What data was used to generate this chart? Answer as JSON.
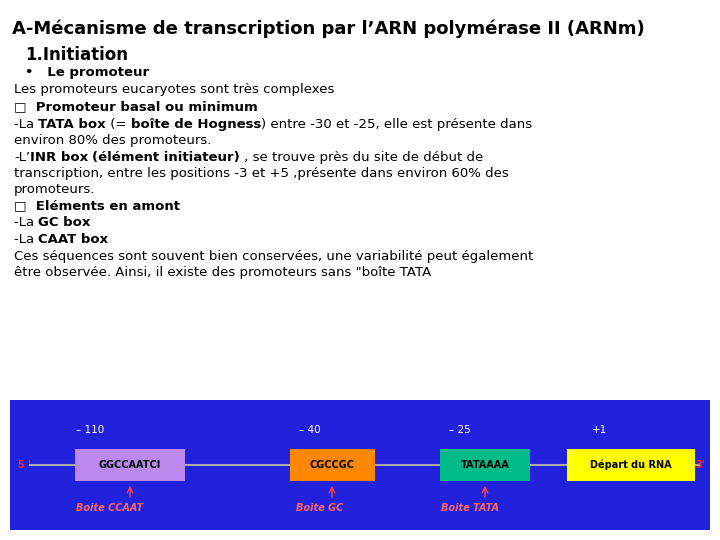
{
  "title": "A-Mécanisme de transcription par l’ARN polymérase II (ARNm)",
  "bg": "#ffffff",
  "diagram": {
    "bg_color": "#2222dd",
    "boxes": [
      {
        "label": "GGCCAATCI",
        "facecolor": "#bb88ee",
        "textcolor": "#000000"
      },
      {
        "label": "CGCCGC",
        "facecolor": "#ff8800",
        "textcolor": "#000000"
      },
      {
        "label": "TATAAAA",
        "facecolor": "#00bb88",
        "textcolor": "#000000"
      },
      {
        "label": "Départ du RNA",
        "facecolor": "#ffff00",
        "textcolor": "#000000"
      }
    ],
    "position_labels": [
      "– 110",
      "– 40",
      "– 25",
      "+1"
    ],
    "bottom_labels": [
      "Boite CCAAT",
      "Boite GC",
      "Boite TATA"
    ]
  }
}
